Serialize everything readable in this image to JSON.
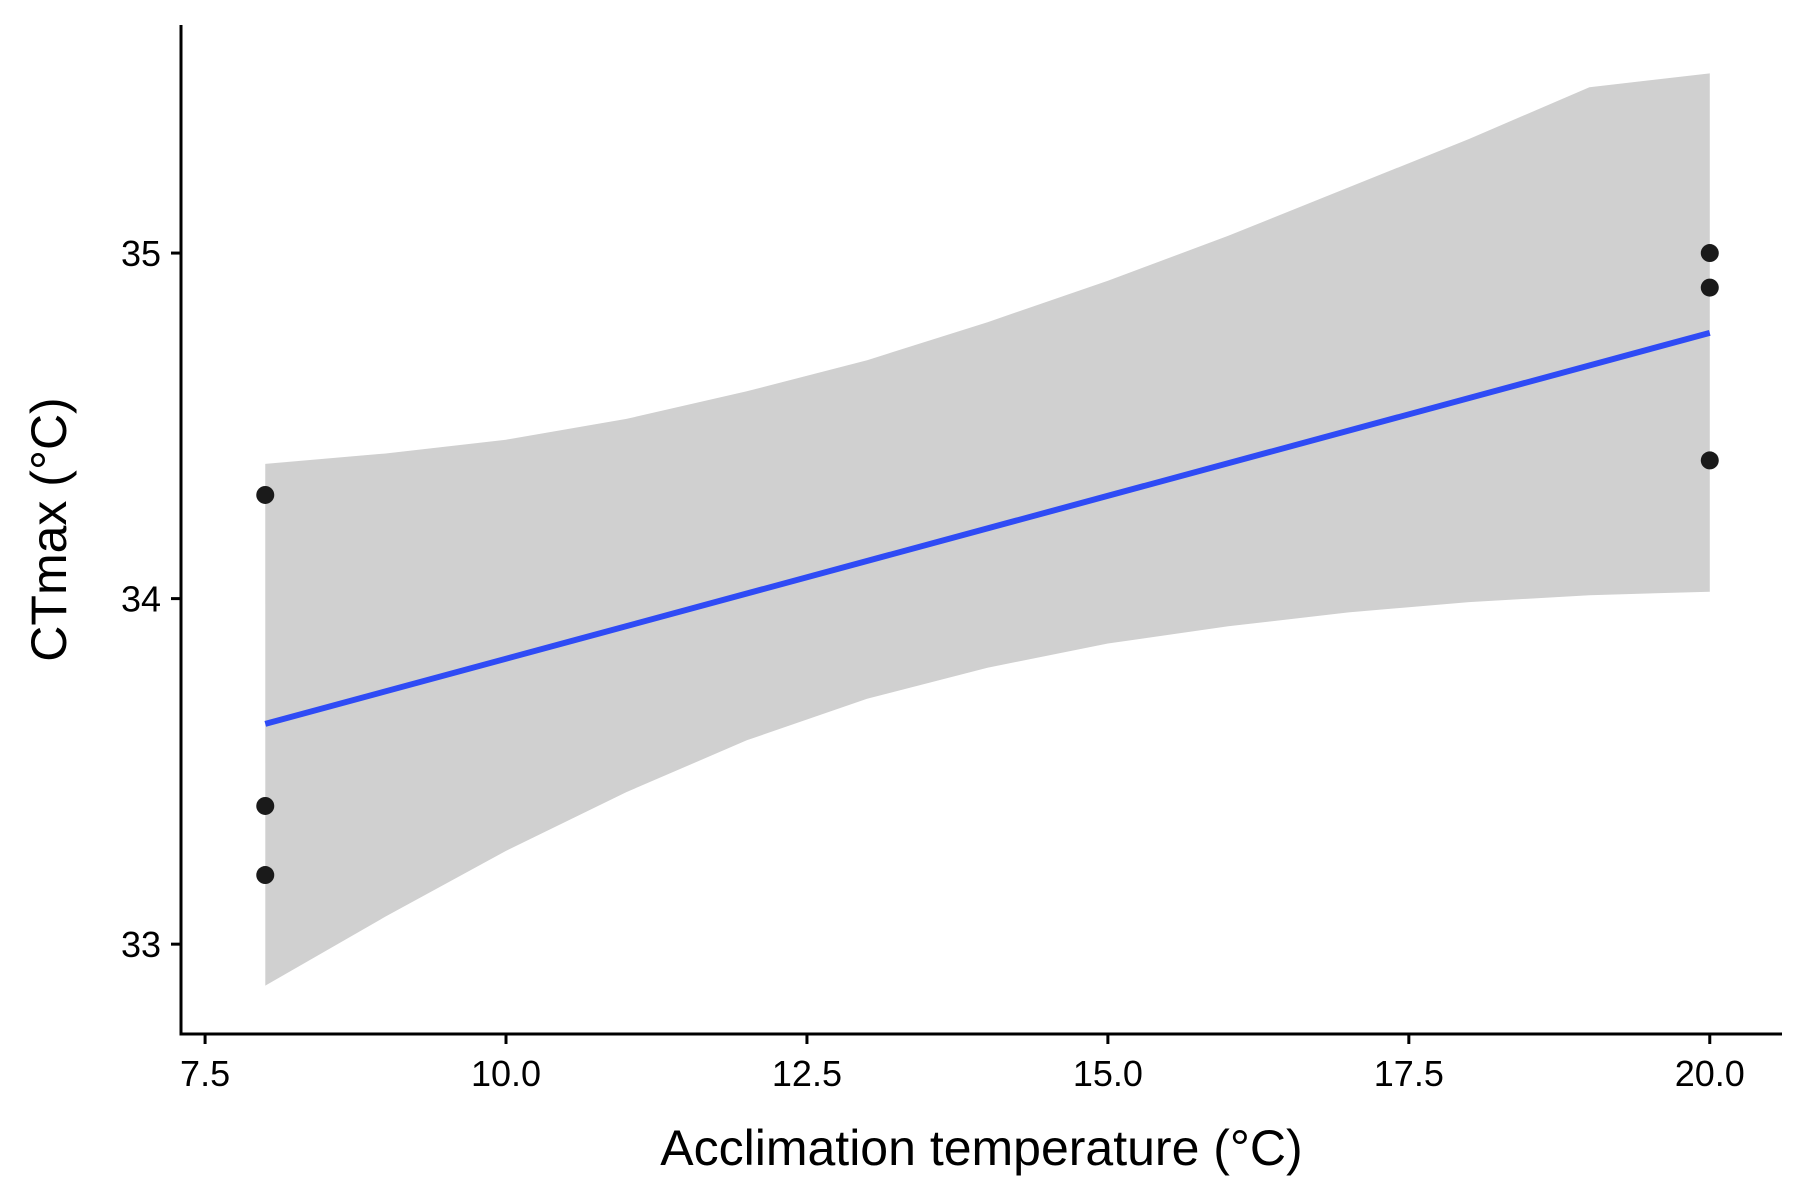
{
  "chart_data": {
    "type": "scatter",
    "xlabel": "Acclimation temperature (°C)",
    "ylabel": "CTmax (°C)",
    "xlim": [
      7.3,
      20.6
    ],
    "ylim": [
      32.74,
      35.66
    ],
    "x_ticks": [
      7.5,
      10.0,
      12.5,
      15.0,
      17.5,
      20.0
    ],
    "x_tick_labels": [
      "7.5",
      "10.0",
      "12.5",
      "15.0",
      "17.5",
      "20.0"
    ],
    "y_ticks": [
      33,
      34,
      35
    ],
    "y_tick_labels": [
      "33",
      "34",
      "35"
    ],
    "grid": false,
    "points": [
      {
        "x": 8,
        "y": 34.3
      },
      {
        "x": 8,
        "y": 33.4
      },
      {
        "x": 8,
        "y": 33.2
      },
      {
        "x": 20,
        "y": 35.0
      },
      {
        "x": 20,
        "y": 34.9
      },
      {
        "x": 20,
        "y": 34.4
      }
    ],
    "fit": {
      "type": "linear",
      "x_range": [
        8,
        20
      ],
      "intercept": 32.883,
      "slope": 0.0943,
      "ci_lower": [
        {
          "x": 8,
          "y": 32.88
        },
        {
          "x": 9,
          "y": 33.08
        },
        {
          "x": 10,
          "y": 33.27
        },
        {
          "x": 11,
          "y": 33.44
        },
        {
          "x": 12,
          "y": 33.59
        },
        {
          "x": 13,
          "y": 33.71
        },
        {
          "x": 14,
          "y": 33.8
        },
        {
          "x": 15,
          "y": 33.87
        },
        {
          "x": 16,
          "y": 33.92
        },
        {
          "x": 17,
          "y": 33.96
        },
        {
          "x": 18,
          "y": 33.99
        },
        {
          "x": 19,
          "y": 34.01
        },
        {
          "x": 20,
          "y": 34.02
        }
      ],
      "ci_upper": [
        {
          "x": 8,
          "y": 34.39
        },
        {
          "x": 9,
          "y": 34.42
        },
        {
          "x": 10,
          "y": 34.46
        },
        {
          "x": 11,
          "y": 34.52
        },
        {
          "x": 12,
          "y": 34.6
        },
        {
          "x": 13,
          "y": 34.69
        },
        {
          "x": 14,
          "y": 34.8
        },
        {
          "x": 15,
          "y": 34.92
        },
        {
          "x": 16,
          "y": 35.05
        },
        {
          "x": 17,
          "y": 35.19
        },
        {
          "x": 18,
          "y": 35.33
        },
        {
          "x": 19,
          "y": 35.48
        },
        {
          "x": 20,
          "y": 35.52
        }
      ]
    },
    "colors": {
      "points": "#1a1a1a",
      "fit_line": "#2f4bf5",
      "ci_band": "#d0d0d0",
      "axis": "#000000"
    }
  }
}
